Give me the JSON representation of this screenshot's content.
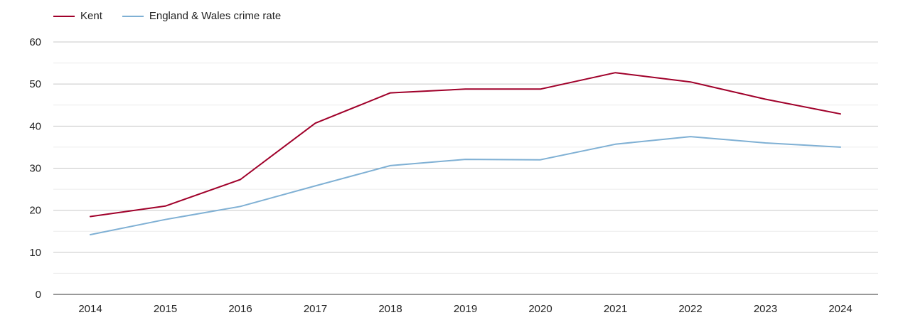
{
  "chart_data": {
    "type": "line",
    "title": "",
    "xlabel": "",
    "ylabel": "",
    "categories": [
      "2014",
      "2015",
      "2016",
      "2017",
      "2018",
      "2019",
      "2020",
      "2021",
      "2022",
      "2023",
      "2024"
    ],
    "ylim": [
      0,
      60
    ],
    "yticks": [
      0,
      10,
      20,
      30,
      40,
      50,
      60
    ],
    "grid": true,
    "legend_position": "top-left",
    "series": [
      {
        "name": "Kent",
        "color": "#a0002a",
        "values": [
          18.5,
          21.0,
          27.3,
          40.7,
          47.9,
          48.8,
          48.8,
          52.7,
          50.5,
          46.4,
          42.9
        ]
      },
      {
        "name": "England & Wales crime rate",
        "color": "#7fb0d4",
        "values": [
          14.2,
          17.8,
          20.9,
          25.8,
          30.6,
          32.1,
          32.0,
          35.7,
          37.5,
          36.0,
          35.0
        ]
      }
    ]
  }
}
